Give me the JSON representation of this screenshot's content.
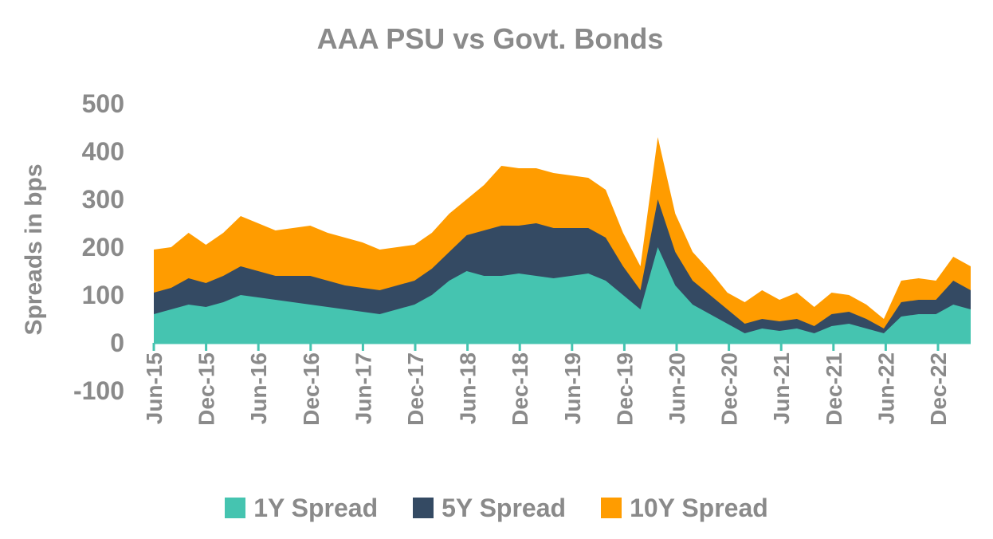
{
  "chart_data": {
    "type": "area",
    "stacked": true,
    "title": "AAA PSU vs Govt. Bonds",
    "ylabel": "Spreads in bps",
    "xlabel": "",
    "ylim": [
      -100,
      500
    ],
    "yticks": [
      -100,
      0,
      100,
      200,
      300,
      400,
      500
    ],
    "xticks": [
      "Jun-15",
      "Dec-15",
      "Jun-16",
      "Dec-16",
      "Jun-17",
      "Dec-17",
      "Jun-18",
      "Dec-18",
      "Jun-19",
      "Dec-19",
      "Jun-20",
      "Dec-20",
      "Jun-21",
      "Dec-21",
      "Jun-22",
      "Dec-22"
    ],
    "x": [
      "Jun-15",
      "Aug-15",
      "Oct-15",
      "Dec-15",
      "Feb-16",
      "Apr-16",
      "Jun-16",
      "Aug-16",
      "Oct-16",
      "Dec-16",
      "Feb-17",
      "Apr-17",
      "Jun-17",
      "Aug-17",
      "Oct-17",
      "Dec-17",
      "Feb-18",
      "Apr-18",
      "Jun-18",
      "Aug-18",
      "Oct-18",
      "Dec-18",
      "Feb-19",
      "Apr-19",
      "Jun-19",
      "Aug-19",
      "Oct-19",
      "Dec-19",
      "Feb-20",
      "Apr-20",
      "Jun-20",
      "Aug-20",
      "Oct-20",
      "Dec-20",
      "Feb-21",
      "Apr-21",
      "Jun-21",
      "Aug-21",
      "Oct-21",
      "Dec-21",
      "Feb-22",
      "Apr-22",
      "Jun-22",
      "Aug-22",
      "Oct-22",
      "Dec-22",
      "Feb-23",
      "Apr-23"
    ],
    "series": [
      {
        "name": "1Y Spread",
        "color": "#45c4b0",
        "values": [
          60,
          70,
          80,
          75,
          85,
          100,
          95,
          90,
          85,
          80,
          75,
          70,
          65,
          60,
          70,
          80,
          100,
          130,
          150,
          140,
          140,
          145,
          140,
          135,
          140,
          145,
          130,
          100,
          70,
          200,
          120,
          80,
          60,
          40,
          20,
          30,
          25,
          30,
          20,
          35,
          40,
          30,
          20,
          55,
          60,
          60,
          80,
          70
        ]
      },
      {
        "name": "5Y Spread",
        "color": "#344a63",
        "values": [
          45,
          45,
          55,
          50,
          55,
          60,
          55,
          50,
          55,
          60,
          55,
          50,
          50,
          50,
          50,
          50,
          55,
          60,
          75,
          95,
          105,
          100,
          110,
          105,
          100,
          95,
          90,
          60,
          40,
          100,
          70,
          50,
          40,
          30,
          20,
          20,
          20,
          20,
          15,
          25,
          25,
          20,
          10,
          30,
          30,
          30,
          50,
          40
        ]
      },
      {
        "name": "10Y Spread",
        "color": "#ff9c00",
        "values": [
          90,
          85,
          95,
          80,
          90,
          105,
          100,
          95,
          100,
          105,
          100,
          100,
          95,
          85,
          80,
          75,
          75,
          80,
          75,
          95,
          125,
          120,
          115,
          115,
          110,
          105,
          100,
          70,
          50,
          130,
          80,
          60,
          50,
          35,
          45,
          60,
          45,
          55,
          40,
          45,
          35,
          30,
          20,
          45,
          45,
          40,
          50,
          50
        ]
      }
    ],
    "legend_position": "bottom",
    "grid": false
  }
}
